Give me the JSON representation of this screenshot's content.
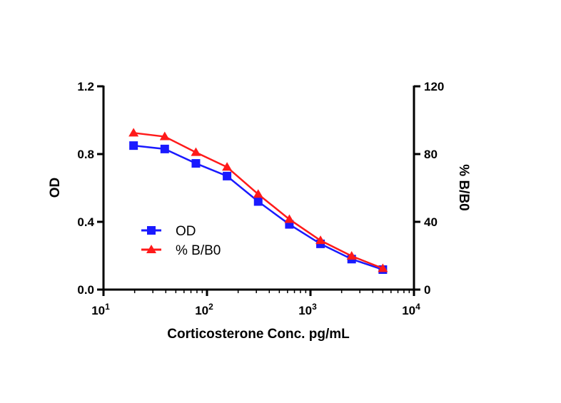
{
  "chart_data": {
    "type": "line",
    "xlabel": "Corticosterone Conc. pg/mL",
    "ylabel": "OD",
    "y2label": "% B/B0",
    "xscale": "log",
    "xlim": [
      10,
      10000
    ],
    "ylim": [
      0,
      1.2
    ],
    "y2lim": [
      0,
      120
    ],
    "xticks": [
      {
        "base": "10",
        "exp": "1"
      },
      {
        "base": "10",
        "exp": "2"
      },
      {
        "base": "10",
        "exp": "3"
      },
      {
        "base": "10",
        "exp": "4"
      }
    ],
    "yticks": [
      "0.0",
      "0.4",
      "0.8",
      "1.2"
    ],
    "y2ticks": [
      "0",
      "40",
      "80",
      "120"
    ],
    "grid": false,
    "legend_position": "center-left",
    "x": [
      19.53,
      39.06,
      78.13,
      156.25,
      312.5,
      625,
      1250,
      2500,
      5000
    ],
    "series": [
      {
        "name": "OD",
        "axis": "left",
        "color": "#1a1aff",
        "marker": "square",
        "values": [
          0.85,
          0.83,
          0.745,
          0.67,
          0.52,
          0.385,
          0.27,
          0.18,
          0.118
        ]
      },
      {
        "name": "% B/B0",
        "axis": "right",
        "color": "#ff1a1a",
        "marker": "triangle",
        "values": [
          92.5,
          90.3,
          81,
          72.3,
          56.3,
          41.5,
          29,
          19.8,
          12.5
        ]
      }
    ]
  }
}
